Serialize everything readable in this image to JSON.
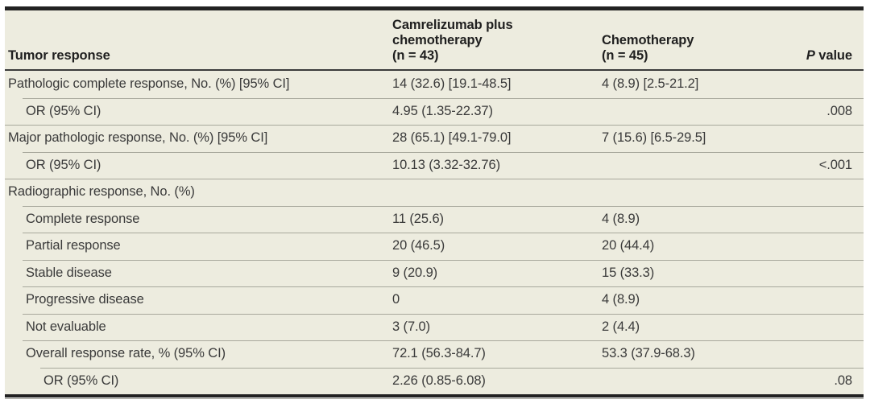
{
  "table": {
    "header": {
      "tumor_response": "Tumor response",
      "camrelizumab": "Camrelizumab plus\nchemotherapy\n(n = 43)",
      "chemotherapy": "Chemotherapy\n(n = 45)",
      "p_value": {
        "italic": "P",
        "text": "value"
      }
    },
    "rows": [
      {
        "label": "Pathologic complete response, No. (%) [95% CI]",
        "camrelizumab": "14 (32.6) [19.1-48.5]",
        "chemotherapy": "4 (8.9) [2.5-21.2]",
        "p": ""
      },
      {
        "label": "OR (95% CI)",
        "camrelizumab": "4.95 (1.35-22.37)",
        "chemotherapy": "",
        "p": ".008"
      },
      {
        "label": "Major pathologic response, No. (%) [95% CI]",
        "camrelizumab": "28 (65.1) [49.1-79.0]",
        "chemotherapy": "7 (15.6) [6.5-29.5]",
        "p": ""
      },
      {
        "label": "OR (95% CI)",
        "camrelizumab": "10.13 (3.32-32.76)",
        "chemotherapy": "",
        "p": "<.001"
      },
      {
        "label": "Radiographic response, No. (%)",
        "camrelizumab": "",
        "chemotherapy": "",
        "p": ""
      },
      {
        "label": "Complete response",
        "camrelizumab": "11 (25.6)",
        "chemotherapy": "4 (8.9)",
        "p": ""
      },
      {
        "label": "Partial response",
        "camrelizumab": "20 (46.5)",
        "chemotherapy": "20 (44.4)",
        "p": ""
      },
      {
        "label": "Stable disease",
        "camrelizumab": "9 (20.9)",
        "chemotherapy": "15 (33.3)",
        "p": ""
      },
      {
        "label": "Progressive disease",
        "camrelizumab": "0",
        "chemotherapy": "4 (8.9)",
        "p": ""
      },
      {
        "label": "Not evaluable",
        "camrelizumab": "3 (7.0)",
        "chemotherapy": "2 (4.4)",
        "p": ""
      },
      {
        "label": "Overall response rate, % (95% CI)",
        "camrelizumab": "72.1 (56.3-84.7)",
        "chemotherapy": "53.3 (37.9-68.3)",
        "p": ""
      },
      {
        "label": "OR (95% CI)",
        "camrelizumab": "2.26 (0.85-6.08)",
        "chemotherapy": "",
        "p": ".08"
      }
    ],
    "colors": {
      "background": "#edecdf",
      "rule_dark": "#222222",
      "rule_light": "#a8a89c",
      "text": "#3a3a3a"
    }
  }
}
